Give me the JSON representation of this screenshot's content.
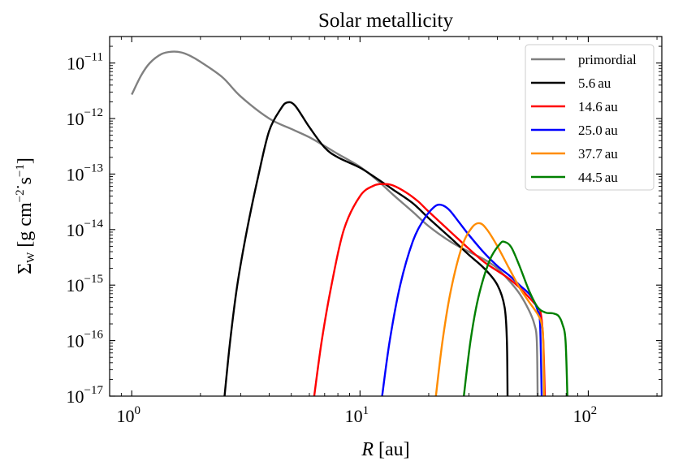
{
  "chart_data": {
    "type": "line",
    "title": "Solar metallicity",
    "xlabel": {
      "var": "R",
      "unit": " [au]"
    },
    "ylabel": {
      "prefix": "Σ",
      "sub": "W",
      "unit_open": " [g cm",
      "unit_exp1": "−2",
      "unit_mid": " s",
      "unit_exp2": "−1",
      "unit_close": "]"
    },
    "xscale": "log",
    "yscale": "log",
    "xlim": [
      0.8,
      210
    ],
    "ylim": [
      1e-17,
      3e-11
    ],
    "xticks": [
      {
        "value": 1,
        "base": "10",
        "exp": "0"
      },
      {
        "value": 10,
        "base": "10",
        "exp": "1"
      },
      {
        "value": 100,
        "base": "10",
        "exp": "2"
      }
    ],
    "yticks": [
      {
        "value": 1e-11,
        "base": "10",
        "exp": "−11"
      },
      {
        "value": 1e-12,
        "base": "10",
        "exp": "−12"
      },
      {
        "value": 1e-13,
        "base": "10",
        "exp": "−13"
      },
      {
        "value": 1e-14,
        "base": "10",
        "exp": "−14"
      },
      {
        "value": 1e-15,
        "base": "10",
        "exp": "−15"
      },
      {
        "value": 1e-16,
        "base": "10",
        "exp": "−16"
      },
      {
        "value": 1e-17,
        "base": "10",
        "exp": "−17"
      }
    ],
    "legend_position": "top-right",
    "series": [
      {
        "name": "primordial",
        "color": "#808080",
        "points": [
          [
            1.0,
            2.7e-12
          ],
          [
            1.1,
            6e-12
          ],
          [
            1.2,
            1e-11
          ],
          [
            1.35,
            1.45e-11
          ],
          [
            1.5,
            1.6e-11
          ],
          [
            1.65,
            1.55e-11
          ],
          [
            1.8,
            1.35e-11
          ],
          [
            2.0,
            1.05e-11
          ],
          [
            2.5,
            5.5e-12
          ],
          [
            3.0,
            2.5e-12
          ],
          [
            4.0,
            1e-12
          ],
          [
            5.0,
            6.5e-13
          ],
          [
            6.0,
            4.6e-13
          ],
          [
            7.0,
            3.2e-13
          ],
          [
            8.0,
            2.3e-13
          ],
          [
            10.0,
            1.35e-13
          ],
          [
            12.0,
            7.5e-14
          ],
          [
            14.0,
            4.2e-14
          ],
          [
            17.0,
            2.1e-14
          ],
          [
            20.0,
            1.15e-14
          ],
          [
            25.0,
            6e-15
          ],
          [
            30.0,
            4e-15
          ],
          [
            35.0,
            2.9e-15
          ],
          [
            40.0,
            2e-15
          ],
          [
            45.0,
            1.2e-15
          ],
          [
            50.0,
            7e-16
          ],
          [
            55.0,
            3.5e-16
          ],
          [
            58.0,
            2e-16
          ],
          [
            59.5,
            1e-16
          ],
          [
            60.0,
            1e-17
          ]
        ]
      },
      {
        "name": "5.6 au",
        "color": "#000000",
        "points": [
          [
            2.55,
            1e-17
          ],
          [
            2.7,
            1e-16
          ],
          [
            2.9,
            1e-15
          ],
          [
            3.2,
            1e-14
          ],
          [
            3.6,
            1e-13
          ],
          [
            4.0,
            6e-13
          ],
          [
            4.5,
            1.5e-12
          ],
          [
            4.8,
            1.95e-12
          ],
          [
            5.2,
            1.7e-12
          ],
          [
            6.0,
            7e-13
          ],
          [
            7.0,
            3e-13
          ],
          [
            8.0,
            2e-13
          ],
          [
            10.0,
            1.3e-13
          ],
          [
            12.0,
            8e-14
          ],
          [
            14.0,
            5.2e-14
          ],
          [
            17.0,
            3e-14
          ],
          [
            20.0,
            1.6e-14
          ],
          [
            25.0,
            7e-15
          ],
          [
            30.0,
            3.5e-15
          ],
          [
            35.0,
            2e-15
          ],
          [
            40.0,
            1e-15
          ],
          [
            43.0,
            4e-16
          ],
          [
            44.0,
            1e-16
          ],
          [
            44.3,
            1e-17
          ]
        ]
      },
      {
        "name": "14.6 au",
        "color": "#ff0000",
        "points": [
          [
            6.3,
            1e-17
          ],
          [
            6.8,
            1e-16
          ],
          [
            7.5,
            1e-15
          ],
          [
            8.5,
            1e-14
          ],
          [
            10.0,
            4e-14
          ],
          [
            11.5,
            6.2e-14
          ],
          [
            12.8,
            6.6e-14
          ],
          [
            14.0,
            6.2e-14
          ],
          [
            16.0,
            4.6e-14
          ],
          [
            18.0,
            3.2e-14
          ],
          [
            20.0,
            2.1e-14
          ],
          [
            25.0,
            9e-15
          ],
          [
            30.0,
            4.5e-15
          ],
          [
            35.0,
            2.6e-15
          ],
          [
            40.0,
            1.8e-15
          ],
          [
            45.0,
            1.3e-15
          ],
          [
            50.0,
            9e-16
          ],
          [
            55.0,
            6e-16
          ],
          [
            60.0,
            4e-16
          ],
          [
            62.0,
            3e-16
          ],
          [
            63.5,
            1e-16
          ],
          [
            64.5,
            1e-17
          ]
        ]
      },
      {
        "name": "25.0 au",
        "color": "#0000ff",
        "points": [
          [
            12.5,
            1e-17
          ],
          [
            13.5,
            1e-16
          ],
          [
            15.0,
            1e-15
          ],
          [
            17.0,
            6e-15
          ],
          [
            19.0,
            1.5e-14
          ],
          [
            21.0,
            2.5e-14
          ],
          [
            22.5,
            2.8e-14
          ],
          [
            24.5,
            2.3e-14
          ],
          [
            27.0,
            1.4e-14
          ],
          [
            30.0,
            8e-15
          ],
          [
            35.0,
            3.8e-15
          ],
          [
            40.0,
            2.2e-15
          ],
          [
            45.0,
            1.5e-15
          ],
          [
            50.0,
            1e-15
          ],
          [
            55.0,
            7e-16
          ],
          [
            58.0,
            5e-16
          ],
          [
            60.0,
            3.5e-16
          ],
          [
            61.5,
            2e-16
          ],
          [
            62.5,
            1e-17
          ]
        ]
      },
      {
        "name": "37.7 au",
        "color": "#ff8c00",
        "points": [
          [
            21.5,
            1e-17
          ],
          [
            23.0,
            1e-16
          ],
          [
            25.0,
            8e-16
          ],
          [
            28.0,
            5e-15
          ],
          [
            31.0,
            1.1e-14
          ],
          [
            33.5,
            1.3e-14
          ],
          [
            36.0,
            1e-14
          ],
          [
            40.0,
            5e-15
          ],
          [
            45.0,
            2e-15
          ],
          [
            50.0,
            9e-16
          ],
          [
            55.0,
            5e-16
          ],
          [
            60.0,
            3e-16
          ],
          [
            62.5,
            2e-16
          ],
          [
            63.5,
            1e-16
          ],
          [
            64.0,
            1e-17
          ]
        ]
      },
      {
        "name": "44.5 au",
        "color": "#008000",
        "points": [
          [
            28.5,
            1e-17
          ],
          [
            30.5,
            1e-16
          ],
          [
            33.0,
            6e-16
          ],
          [
            37.0,
            2.8e-15
          ],
          [
            41.0,
            5.5e-15
          ],
          [
            43.0,
            6e-15
          ],
          [
            46.0,
            4.8e-15
          ],
          [
            50.0,
            2.2e-15
          ],
          [
            55.0,
            8e-16
          ],
          [
            60.0,
            4e-16
          ],
          [
            65.0,
            3.2e-16
          ],
          [
            70.0,
            3.1e-16
          ],
          [
            74.0,
            2.8e-16
          ],
          [
            77.0,
            2e-16
          ],
          [
            79.5,
            1e-16
          ],
          [
            81.0,
            1e-17
          ]
        ]
      }
    ],
    "legend_labels": [
      {
        "text": "primordial"
      },
      {
        "num": "5.6",
        "unit": "au"
      },
      {
        "num": "14.6",
        "unit": "au"
      },
      {
        "num": "25.0",
        "unit": "au"
      },
      {
        "num": "37.7",
        "unit": "au"
      },
      {
        "num": "44.5",
        "unit": "au"
      }
    ]
  }
}
